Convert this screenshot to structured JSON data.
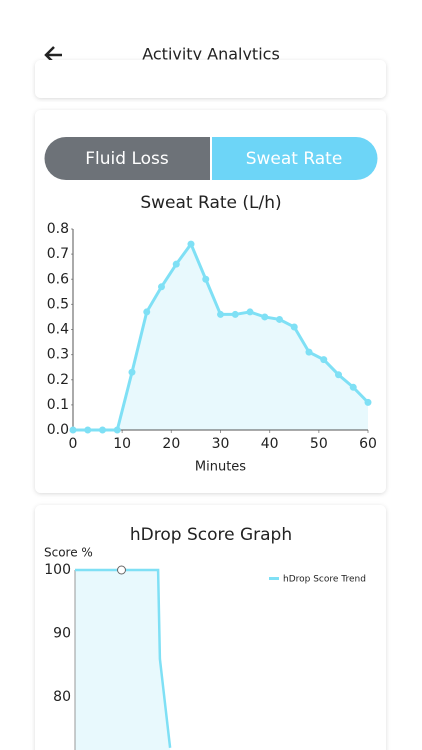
{
  "header": {
    "title": "Activity Analytics"
  },
  "tabs": [
    "Fluid Loss",
    "Sweat Rate"
  ],
  "chart_data": [
    {
      "type": "line",
      "title": "Sweat Rate (L/h)",
      "x_label": "Minutes",
      "color": "#7fe0f5",
      "x": [
        0,
        3,
        6,
        9,
        12,
        15,
        18,
        21,
        24,
        27,
        30,
        33,
        36,
        39,
        42,
        45,
        48,
        51,
        54,
        57,
        60
      ],
      "values": [
        0,
        0,
        0,
        0,
        0.23,
        0.47,
        0.57,
        0.66,
        0.74,
        0.6,
        0.46,
        0.46,
        0.47,
        0.45,
        0.44,
        0.41,
        0.31,
        0.28,
        0.22,
        0.17,
        0.11
      ],
      "xlim": [
        0,
        60
      ],
      "xticks": [
        0,
        10,
        20,
        30,
        40,
        50,
        60
      ],
      "ylim": [
        0,
        0.8
      ],
      "yticks": [
        {
          "value": 0,
          "label": "0.0"
        },
        0.1,
        0.2,
        0.3,
        0.4,
        0.5,
        0.6,
        0.7,
        0.8
      ]
    },
    {
      "type": "line",
      "title": "hDrop Score Graph",
      "y_label": "Score %",
      "color": "#7fe0f5",
      "series": [
        {
          "name": "hDrop Score Trend",
          "color": "#7fe0f5",
          "x": [
            0,
            15.5,
            27.7,
            28.3,
            30,
            31.7
          ],
          "values": [
            100,
            100,
            100,
            86,
            79,
            72
          ]
        }
      ],
      "xlim": [
        0,
        100
      ],
      "ylim": [
        70,
        100
      ],
      "yticks": [
        80,
        90,
        100
      ],
      "legend": "top-right"
    }
  ]
}
